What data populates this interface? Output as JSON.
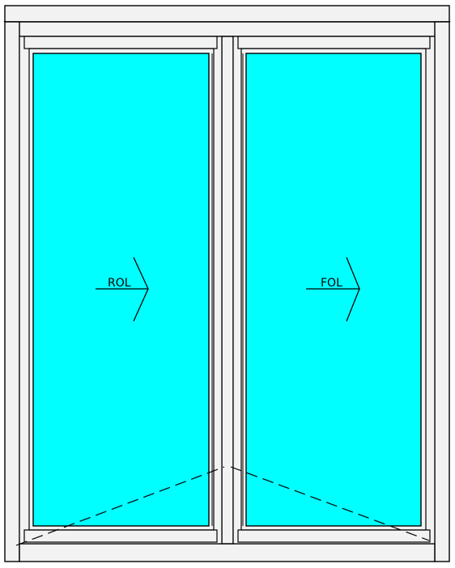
{
  "drawing": {
    "background": "#ffffff",
    "frame_color": "#f2f2f2",
    "line_color": "#000000",
    "glass_color": "#00ffff",
    "left_sash": {
      "label": "ROL"
    },
    "right_sash": {
      "label": "FOL"
    }
  }
}
